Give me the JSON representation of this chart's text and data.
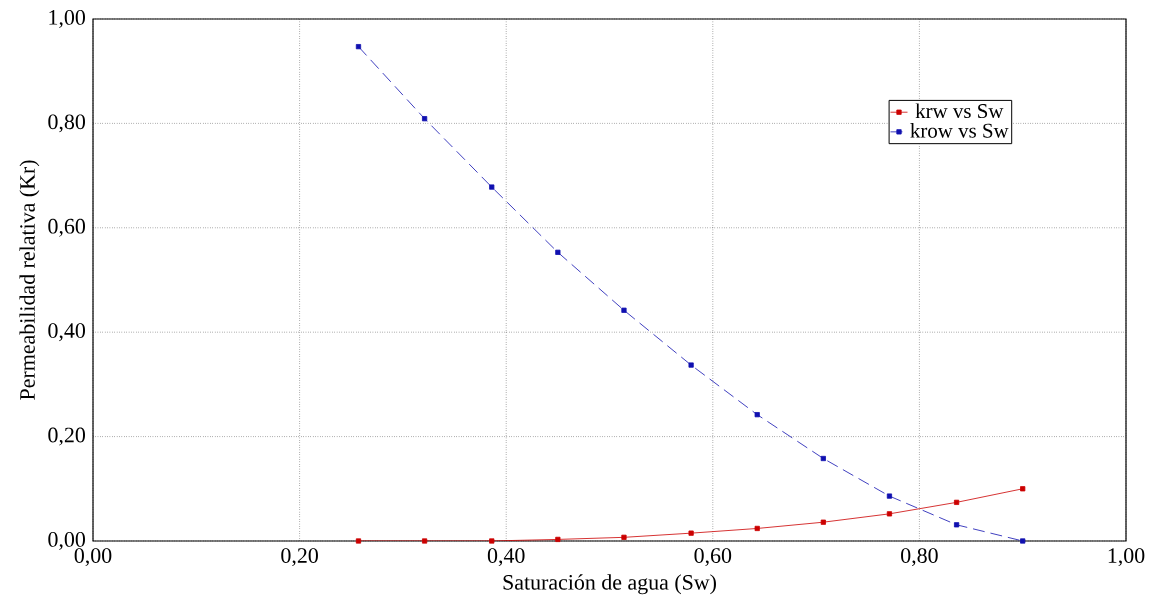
{
  "chart_data": {
    "type": "line",
    "xlabel": "Saturación de agua (Sw)",
    "ylabel": "Permeabilidad relativa (Kr)",
    "x": [
      0.257,
      0.321,
      0.386,
      0.45,
      0.514,
      0.579,
      0.643,
      0.707,
      0.771,
      0.836,
      0.9
    ],
    "series": [
      {
        "name": "krw vs Sw",
        "color": "#cc0000",
        "line_style": "solid",
        "values": [
          0,
          0,
          0,
          0.003,
          0.007,
          0.015,
          0.024,
          0.036,
          0.052,
          0.074,
          0.1
        ]
      },
      {
        "name": "krow vs Sw",
        "color": "#1010b0",
        "line_style": "dashed",
        "values": [
          0.947,
          0.809,
          0.678,
          0.553,
          0.442,
          0.337,
          0.242,
          0.158,
          0.086,
          0.031,
          0
        ]
      }
    ],
    "xlim": [
      0,
      1
    ],
    "ylim": [
      0,
      1
    ],
    "xticks": [
      {
        "value": 0,
        "label": "0,00"
      },
      {
        "value": 0.2,
        "label": "0,20"
      },
      {
        "value": 0.4,
        "label": "0,40"
      },
      {
        "value": 0.6,
        "label": "0,60"
      },
      {
        "value": 0.8,
        "label": "0,80"
      },
      {
        "value": 1,
        "label": "1,00"
      }
    ],
    "yticks": [
      {
        "value": 0,
        "label": "0,00"
      },
      {
        "value": 0.2,
        "label": "0,20"
      },
      {
        "value": 0.4,
        "label": "0,40"
      },
      {
        "value": 0.6,
        "label": "0,60"
      },
      {
        "value": 0.8,
        "label": "0,80"
      },
      {
        "value": 1,
        "label": "1,00"
      }
    ],
    "grid": true,
    "legend": "top right",
    "marker": "square"
  }
}
